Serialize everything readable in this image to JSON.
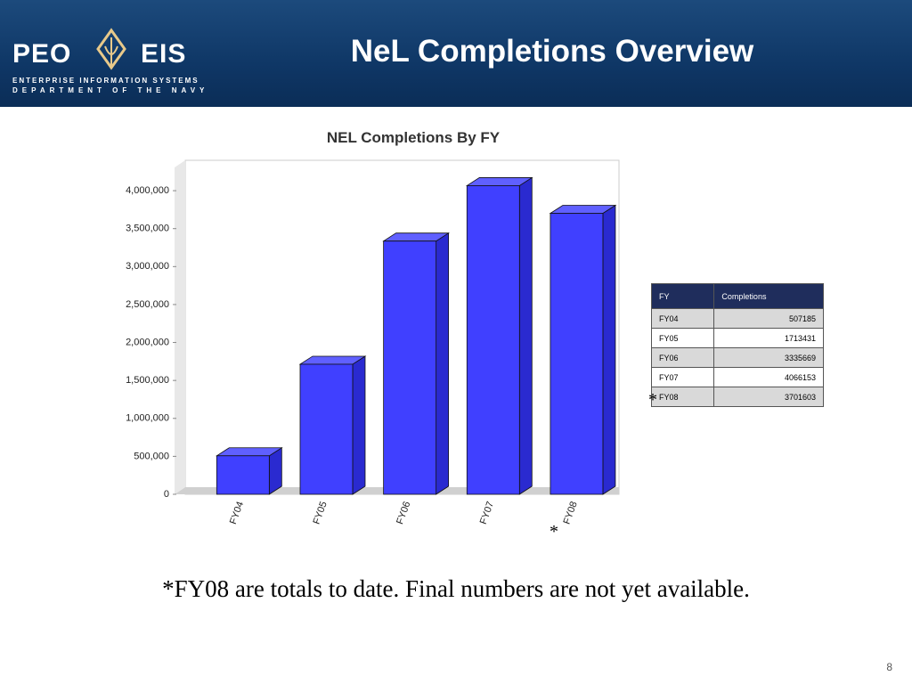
{
  "header": {
    "title": "NeL Completions Overview",
    "logo_left": "PEO",
    "logo_right": "EIS",
    "logo_line1": "ENTERPRISE INFORMATION SYSTEMS",
    "logo_line2": "DEPARTMENT OF THE NAVY"
  },
  "chart_data": {
    "type": "bar",
    "title": "NEL Completions By FY",
    "categories": [
      "FY04",
      "FY05",
      "FY06",
      "FY07",
      "FY08"
    ],
    "values": [
      507185,
      1713431,
      3335669,
      4066153,
      3701603
    ],
    "color": "#4040ff",
    "ylim": [
      0,
      4400000
    ],
    "yticks": [
      0,
      {
        "value": 500000,
        "label": "500,000"
      },
      {
        "value": 1000000,
        "label": "1,000,000"
      },
      {
        "value": 1500000,
        "label": "1,500,000"
      },
      {
        "value": 2000000,
        "label": "2,000,000"
      },
      {
        "value": 2500000,
        "label": "2,500,000"
      },
      {
        "value": 3000000,
        "label": "3,000,000"
      },
      {
        "value": 3500000,
        "label": "3,500,000"
      },
      {
        "value": 4000000,
        "label": "4,000,000"
      }
    ],
    "note_marker": "*"
  },
  "table": {
    "header": [
      "FY",
      "Completions"
    ],
    "note_marker": "*"
  },
  "footnote": "*FY08 are totals to date.  Final numbers are not yet available.",
  "page_number": "8"
}
